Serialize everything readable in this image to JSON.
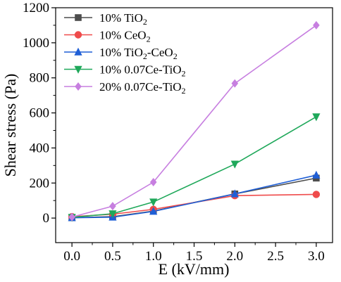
{
  "chart_data": {
    "type": "line",
    "xlabel": "E (kV/mm)",
    "ylabel": "Shear stress (Pa)",
    "xlim": [
      -0.2,
      3.2
    ],
    "ylim": [
      -140,
      1200
    ],
    "x_ticks": [
      "0.0",
      "0.5",
      "1.0",
      "1.5",
      "2.0",
      "2.5",
      "3.0"
    ],
    "y_ticks": [
      "0",
      "200",
      "400",
      "600",
      "800",
      "1000",
      "1200"
    ],
    "legend_position": "top-left",
    "series": [
      {
        "name": "10% TiO2",
        "legend": {
          "base": "10% TiO",
          "sub": "2",
          "tail": ""
        },
        "color": "#4d4d4d",
        "marker": "square",
        "x": [
          0.0,
          0.5,
          1.0,
          2.0,
          3.0
        ],
        "values": [
          2,
          8,
          40,
          138,
          228
        ]
      },
      {
        "name": "10% CeO2",
        "legend": {
          "base": "10% CeO",
          "sub": "2",
          "tail": ""
        },
        "color": "#ef4b4b",
        "marker": "circle",
        "x": [
          0.0,
          0.5,
          1.0,
          2.0,
          3.0
        ],
        "values": [
          8,
          22,
          50,
          128,
          135
        ]
      },
      {
        "name": "10% TiO2-CeO2",
        "legend": {
          "base": "10% TiO",
          "sub": "2",
          "tail": "-CeO",
          "sub2": "2"
        },
        "color": "#1f5fd6",
        "marker": "triangle-up",
        "x": [
          0.0,
          0.5,
          1.0,
          2.0,
          3.0
        ],
        "values": [
          2,
          5,
          38,
          138,
          245
        ]
      },
      {
        "name": "10% 0.07Ce-TiO2",
        "legend": {
          "base": "10% 0.07Ce-TiO",
          "sub": "2",
          "tail": ""
        },
        "color": "#1fa85a",
        "marker": "triangle-down",
        "x": [
          0.0,
          0.5,
          1.0,
          2.0,
          3.0
        ],
        "values": [
          4,
          25,
          92,
          308,
          578
        ]
      },
      {
        "name": "20% 0.07Ce-TiO2",
        "legend": {
          "base": "20% 0.07Ce-TiO",
          "sub": "2",
          "tail": ""
        },
        "color": "#c77fe0",
        "marker": "diamond",
        "x": [
          0.0,
          0.5,
          1.0,
          2.0,
          3.0
        ],
        "values": [
          6,
          68,
          205,
          768,
          1100
        ]
      }
    ]
  }
}
